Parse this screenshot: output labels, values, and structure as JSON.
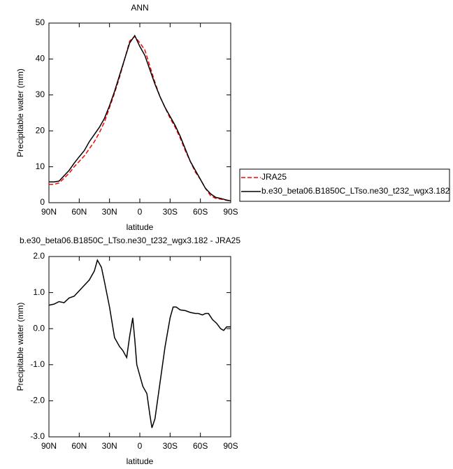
{
  "chart_data": [
    {
      "type": "line",
      "title": "ANN",
      "ylabel": "Precipitable water (mm)",
      "xlabel": "latitude",
      "x": [
        90,
        85,
        80,
        75,
        70,
        65,
        60,
        55,
        50,
        45,
        40,
        35,
        30,
        25,
        20,
        15,
        10,
        5,
        0,
        -5,
        -10,
        -15,
        -20,
        -25,
        -30,
        -35,
        -40,
        -45,
        -50,
        -55,
        -60,
        -65,
        -70,
        -75,
        -80,
        -85,
        -90
      ],
      "series": [
        {
          "name": "JRA25",
          "color": "#ff0000",
          "style": "dashed",
          "values": [
            5.1,
            5.1,
            5.5,
            6.8,
            8.2,
            10,
            11.5,
            13,
            15,
            17,
            19.5,
            22.5,
            26.5,
            30.5,
            35,
            40,
            45,
            46.3,
            44.5,
            42.5,
            38,
            33.5,
            29.5,
            26.5,
            23.5,
            21,
            18,
            14.5,
            11.5,
            8.5,
            6.5,
            4,
            2,
            1.2,
            1,
            0.7,
            0.5
          ]
        },
        {
          "name": "b.e30_beta06.B1850C_LTso.ne30_t232_wgx3.182",
          "color": "#000000",
          "style": "solid",
          "values": [
            5.8,
            5.8,
            6,
            7.5,
            9,
            11,
            12.8,
            14.5,
            17,
            19,
            21,
            23.5,
            27,
            31,
            35.5,
            40,
            44.5,
            46.5,
            43.5,
            41,
            37,
            33,
            29.5,
            26.5,
            24,
            21.5,
            18.5,
            15,
            11.5,
            9,
            6.5,
            4,
            2.5,
            1.5,
            1.2,
            0.8,
            0.5
          ]
        }
      ],
      "xlim": [
        90,
        -90
      ],
      "xticks": [
        {
          "value": 90,
          "label": "90N"
        },
        {
          "value": 60,
          "label": "60N"
        },
        {
          "value": 30,
          "label": "30N"
        },
        0,
        {
          "value": -30,
          "label": "30S"
        },
        {
          "value": -60,
          "label": "60S"
        },
        {
          "value": -90,
          "label": "90S"
        }
      ],
      "ylim": [
        0,
        50
      ],
      "yticks": [
        0,
        10,
        20,
        30,
        40,
        50
      ],
      "legend": "outside-right"
    },
    {
      "type": "line",
      "title": "b.e30_beta06.B1850C_LTso.ne30_t232_wgx3.182 - JRA25",
      "ylabel": "Precipitable water (mm)",
      "xlabel": "latitude",
      "x": [
        90,
        85,
        80,
        75,
        70,
        65,
        60,
        55,
        50,
        45,
        42,
        38,
        35,
        30,
        25,
        20,
        17,
        13,
        10,
        7,
        5,
        3,
        0,
        -3,
        -7,
        -10,
        -12,
        -15,
        -20,
        -25,
        -30,
        -33,
        -36,
        -40,
        -45,
        -50,
        -55,
        -58,
        -62,
        -65,
        -68,
        -72,
        -76,
        -80,
        -83,
        -86,
        -90
      ],
      "values": [
        0.65,
        0.68,
        0.75,
        0.72,
        0.85,
        0.9,
        1.05,
        1.2,
        1.35,
        1.6,
        1.9,
        1.7,
        1.3,
        0.6,
        -0.25,
        -0.5,
        -0.6,
        -0.8,
        -0.2,
        0.3,
        -0.3,
        -1.0,
        -1.3,
        -1.6,
        -1.8,
        -2.4,
        -2.75,
        -2.5,
        -1.5,
        -0.5,
        0.3,
        0.6,
        0.6,
        0.52,
        0.5,
        0.45,
        0.42,
        0.42,
        0.38,
        0.42,
        0.42,
        0.25,
        0.15,
        0.0,
        -0.05,
        0.05,
        0.05
      ],
      "color": "#000000",
      "xlim": [
        90,
        -90
      ],
      "xticks": [
        {
          "value": 90,
          "label": "90N"
        },
        {
          "value": 60,
          "label": "60N"
        },
        {
          "value": 30,
          "label": "30N"
        },
        0,
        {
          "value": -30,
          "label": "30S"
        },
        {
          "value": -60,
          "label": "60S"
        },
        {
          "value": -90,
          "label": "90S"
        }
      ],
      "ylim": [
        -3,
        2
      ],
      "yticks": [
        {
          "value": 2,
          "label": "2.0"
        },
        {
          "value": 1,
          "label": "1.0"
        },
        {
          "value": 0,
          "label": "0.0"
        },
        {
          "value": -1,
          "label": "-1.0"
        },
        {
          "value": -2,
          "label": "-2.0"
        },
        {
          "value": -3,
          "label": "-3.0"
        }
      ]
    }
  ]
}
